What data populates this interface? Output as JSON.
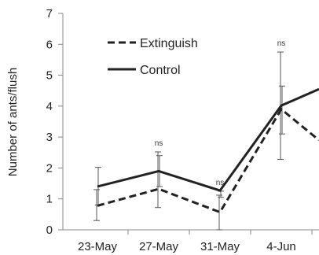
{
  "chart_data": {
    "type": "line",
    "title": "",
    "xlabel": "",
    "ylabel": "Number of ants/flush",
    "ylim": [
      0,
      7
    ],
    "yticks": [
      0,
      1,
      2,
      3,
      4,
      5,
      6,
      7
    ],
    "categories": [
      "23-May",
      "27-May",
      "31-May",
      "4-Jun",
      ""
    ],
    "series": [
      {
        "name": "Extinguish",
        "style": "dashed",
        "color": "#222222",
        "values": [
          0.78,
          1.32,
          0.57,
          3.9,
          2.9
        ],
        "err_low": [
          0.3,
          0.72,
          0.0,
          2.28,
          null
        ],
        "err_high": [
          1.3,
          2.52,
          1.12,
          5.75,
          null
        ]
      },
      {
        "name": "Control",
        "style": "solid",
        "color": "#222222",
        "values": [
          1.4,
          1.9,
          1.27,
          4.02,
          4.55
        ],
        "err_low": [
          0.8,
          1.4,
          1.05,
          3.1,
          null
        ],
        "err_high": [
          2.02,
          2.4,
          1.25,
          4.65,
          null
        ]
      }
    ],
    "annotations": [
      {
        "x_index": 1,
        "text": "ns"
      },
      {
        "x_index": 2,
        "text": "ns"
      },
      {
        "x_index": 3,
        "text": "ns"
      }
    ],
    "legend_position": "top-left",
    "grid": false
  }
}
